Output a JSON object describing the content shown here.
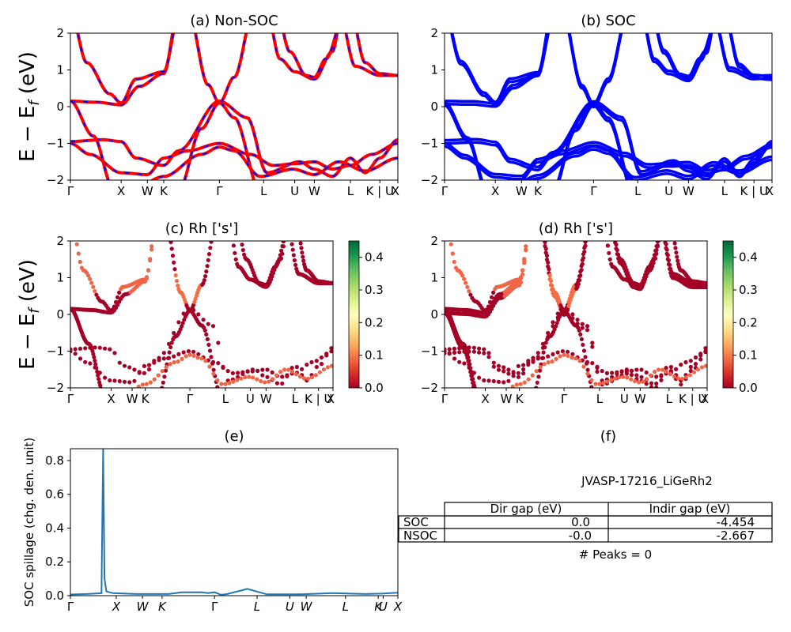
{
  "bands_k_labels": [
    "Γ",
    "X",
    "W",
    "K",
    "Γ",
    "L",
    "U",
    "W",
    "L",
    "K | U",
    "X"
  ],
  "bands_k_positions": [
    0,
    0.155,
    0.235,
    0.285,
    0.455,
    0.59,
    0.685,
    0.745,
    0.855,
    0.945,
    1.0
  ],
  "chart_data": [
    {
      "type": "line",
      "title": "(a) Non-SOC",
      "ylabel": "E − E_f (eV)",
      "ylim": [
        -2,
        2
      ],
      "yticks": [
        -2,
        -1,
        0,
        1,
        2
      ],
      "colors": [
        "#ff0000",
        "#0000ff"
      ],
      "style": "red solid with blue dashed overlay"
    },
    {
      "type": "line",
      "title": "(b) SOC",
      "ylim": [
        -2,
        2
      ],
      "yticks": [
        -2,
        -1,
        0,
        1,
        2
      ],
      "colors": [
        "#0000ff"
      ]
    },
    {
      "type": "scatter",
      "title": "(c)  Rh ['s']",
      "ylabel": "E − E_f (eV)",
      "ylim": [
        -2,
        2
      ],
      "yticks": [
        -2,
        -1,
        0,
        1,
        2
      ],
      "colorbar": {
        "ticks": [
          "0.0",
          "0.1",
          "0.2",
          "0.3",
          "0.4"
        ],
        "range": [
          0,
          0.45
        ],
        "cmap": "RdYlGn"
      }
    },
    {
      "type": "scatter",
      "title": "(d) Rh ['s']",
      "ylim": [
        -2,
        2
      ],
      "yticks": [
        -2,
        -1,
        0,
        1,
        2
      ],
      "colorbar": {
        "ticks": [
          "0.0",
          "0.1",
          "0.2",
          "0.3",
          "0.4"
        ],
        "range": [
          0,
          0.45
        ],
        "cmap": "RdYlGn"
      }
    },
    {
      "type": "line",
      "title": "(e)",
      "ylabel": "SOC spillage (chg. den. unit)",
      "ylim": [
        0,
        0.87
      ],
      "yticks": [
        "0.0",
        "0.2",
        "0.4",
        "0.6",
        "0.8"
      ],
      "xlabels": [
        "Γ",
        "X",
        "W",
        "K",
        "Γ",
        "L",
        "U",
        "W",
        "L",
        "K",
        "U",
        "X"
      ],
      "x": [
        0,
        0.05,
        0.095,
        0.1,
        0.104,
        0.11,
        0.13,
        0.2,
        0.3,
        0.34,
        0.4,
        0.42,
        0.44,
        0.46,
        0.48,
        0.5,
        0.52,
        0.54,
        0.6,
        0.7,
        0.8,
        0.9,
        0.95,
        1.0
      ],
      "values": [
        0.007,
        0.01,
        0.015,
        0.87,
        0.1,
        0.025,
        0.015,
        0.01,
        0.01,
        0.02,
        0.02,
        0.015,
        0.02,
        0.005,
        0.01,
        0.02,
        0.03,
        0.04,
        0.008,
        0.008,
        0.015,
        0.01,
        0.012,
        0.018
      ],
      "color": "#1f77b4"
    },
    {
      "type": "table",
      "title": "(f)",
      "subtitle": "JVASP-17216_LiGeRh2",
      "columns": [
        "Dir gap (eV)",
        "Indir gap (eV)"
      ],
      "rows": [
        {
          "label": "SOC",
          "values": [
            "0.0",
            "-4.454"
          ]
        },
        {
          "label": "NSOC",
          "values": [
            "-0.0",
            "-2.667"
          ]
        }
      ],
      "note": "# Peaks = 0"
    }
  ]
}
